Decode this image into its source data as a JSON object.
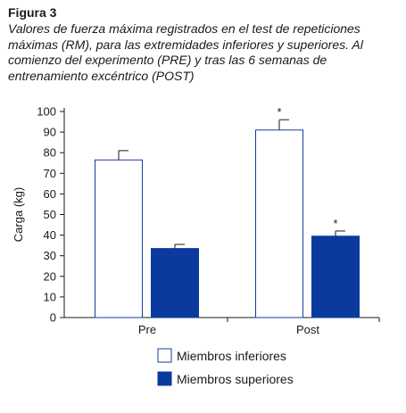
{
  "figure": {
    "label": "Figura 3",
    "caption": "Valores de fuerza máxima registrados en el test de repeticiones máximas (RM), para las extremidades inferiores y superiores. Al comienzo del experimento (PRE) y tras las 6 semanas de entrenamiento excéntrico (POST)"
  },
  "colors": {
    "inferiores_fill": "#ffffff",
    "inferiores_stroke": "#1a3a9c",
    "superiores_fill": "#0a3a9e",
    "axis": "#1a1a1a"
  },
  "chart_data": {
    "type": "bar",
    "categories": [
      "Pre",
      "Post"
    ],
    "ylabel": "Carga (kg)",
    "xlabel": "",
    "ylim": [
      0,
      100
    ],
    "yticks": [
      0,
      10,
      20,
      30,
      40,
      50,
      60,
      70,
      80,
      90,
      100
    ],
    "series": [
      {
        "name": "Miembros inferiores",
        "values": [
          76.5,
          91
        ],
        "errors": [
          4.5,
          5
        ],
        "significance": [
          "",
          "*"
        ]
      },
      {
        "name": "Miembros superiores",
        "values": [
          33.5,
          39.5
        ],
        "errors": [
          2,
          2.5
        ],
        "significance": [
          "",
          "*"
        ]
      }
    ],
    "legend_position": "bottom-center",
    "grid": false
  }
}
